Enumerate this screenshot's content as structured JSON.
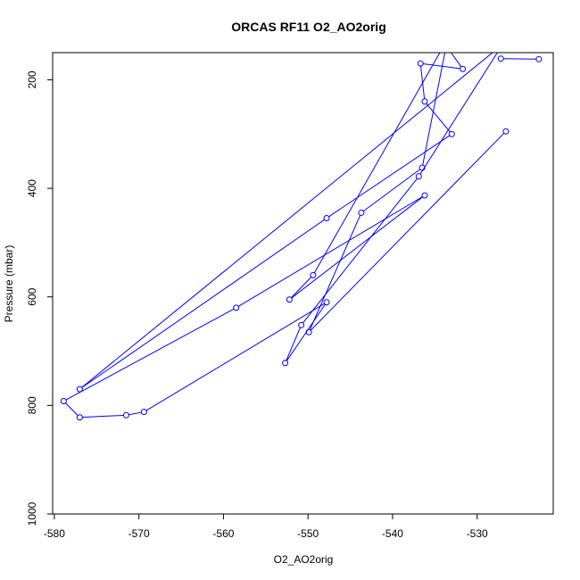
{
  "chart_data": {
    "type": "line",
    "title": "ORCAS RF11 O2_AO2orig",
    "xlabel": "O2_AO2orig",
    "ylabel": "Pressure (mbar)",
    "xlim": [
      -580.2,
      -521.0
    ],
    "ylim": [
      1000,
      150
    ],
    "y_reversed": true,
    "xticks": [
      -580,
      -570,
      -560,
      -550,
      -540,
      -530
    ],
    "yticks": [
      200,
      400,
      600,
      800,
      1000
    ],
    "grid": false,
    "series": [
      {
        "color": "#0000ff",
        "marker": "open-circle",
        "x": [
          -534.0,
          -531.7,
          -536.7,
          -536.2,
          -533.0,
          -547.8,
          -577.0,
          -527.0,
          -536.9,
          -550.8,
          -552.7,
          -547.8,
          -569.4,
          -571.5,
          -577.0,
          -578.9,
          -558.5,
          -536.2,
          -552.2,
          -549.4,
          -533.5,
          -536.5,
          -543.7,
          -549.9,
          -526.6
        ],
        "y": [
          130,
          180,
          170,
          240,
          300,
          455,
          770,
          135,
          378,
          652,
          722,
          610,
          812,
          818,
          822,
          792,
          620,
          413,
          605,
          560,
          125,
          362,
          445,
          665,
          295
        ]
      },
      {
        "color": "#0000ff",
        "marker": "open-circle",
        "x": [
          -527.2,
          -522.7
        ],
        "y": [
          161,
          162
        ]
      }
    ]
  }
}
